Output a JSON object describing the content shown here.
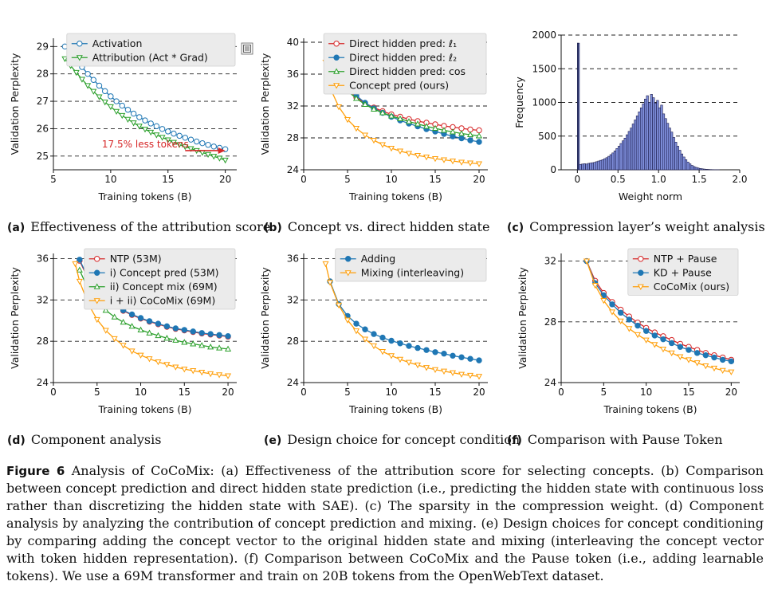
{
  "figure_label": "Figure 6",
  "caption": "Analysis of CoCoMix: (a) Effectiveness of the attribution score for selecting concepts. (b) Comparison between concept prediction and direct hidden state prediction (i.e., predicting the hidden state with continuous loss rather than discretizing the hidden state with SAE). (c) The sparsity in the compression weight. (d) Component analysis by analyzing the contribution of concept prediction and mixing. (e) Design choices for concept conditioning by comparing adding the concept vector to the original hidden state and mixing (interleaving the concept vector with token hidden representation). (f) Comparison between CoCoMix and the Pause token (i.e., adding learnable tokens). We use a 69M transformer and train on 20B tokens from the OpenWebText dataset.",
  "colors": {
    "blue": "#1f77b4",
    "green": "#2ca02c",
    "orange": "#ff9f0a",
    "red": "#d62728",
    "hist_fill": "#7f8fdc",
    "hist_edge": "#1a1a4a",
    "annotation": "#d62728"
  },
  "chart_data": [
    {
      "id": "a",
      "type": "line",
      "sublabel": "(a)",
      "subtitle": "Effectiveness of the attribution score",
      "xlabel": "Training tokens (B)",
      "ylabel": "Validation Perplexity",
      "xlim": [
        5,
        21
      ],
      "ylim": [
        24.5,
        29.3
      ],
      "xticks": [
        5,
        10,
        15,
        20
      ],
      "yticks": [
        25,
        26,
        27,
        28,
        29
      ],
      "hgrid": [
        25,
        26,
        27,
        28,
        29
      ],
      "legend_position": "top-right",
      "annotation": {
        "text": "17.5% less tokens",
        "arrow_from": [
          16.5,
          25.2
        ],
        "arrow_to": [
          20,
          25.2
        ]
      },
      "series": [
        {
          "name": "Activation",
          "color": "blue",
          "marker": "circle",
          "x": [
            6,
            6.5,
            7,
            7.5,
            8,
            8.5,
            9,
            9.5,
            10,
            10.5,
            11,
            11.5,
            12,
            12.5,
            13,
            13.5,
            14,
            14.5,
            15,
            15.5,
            16,
            16.5,
            17,
            17.5,
            18,
            18.5,
            19,
            19.5,
            20
          ],
          "y": [
            29.0,
            28.75,
            28.5,
            28.25,
            28.0,
            27.78,
            27.57,
            27.37,
            27.18,
            27.0,
            26.84,
            26.69,
            26.55,
            26.42,
            26.3,
            26.19,
            26.09,
            25.99,
            25.9,
            25.82,
            25.74,
            25.67,
            25.6,
            25.53,
            25.47,
            25.41,
            25.35,
            25.3,
            25.25
          ]
        },
        {
          "name": "Attribution (Act * Grad)",
          "color": "green",
          "marker": "tri-down",
          "x": [
            6,
            6.5,
            7,
            7.5,
            8,
            8.5,
            9,
            9.5,
            10,
            10.5,
            11,
            11.5,
            12,
            12.5,
            13,
            13.5,
            14,
            14.5,
            15,
            15.5,
            16,
            16.5,
            17,
            17.5,
            18,
            18.5,
            19,
            19.5,
            20
          ],
          "y": [
            28.55,
            28.3,
            28.05,
            27.8,
            27.57,
            27.36,
            27.16,
            26.97,
            26.8,
            26.63,
            26.48,
            26.34,
            26.21,
            26.09,
            25.98,
            25.87,
            25.77,
            25.68,
            25.59,
            25.5,
            25.42,
            25.34,
            25.27,
            25.2,
            25.13,
            25.06,
            24.99,
            24.92,
            24.85
          ]
        }
      ]
    },
    {
      "id": "b",
      "type": "line",
      "sublabel": "(b)",
      "subtitle": "Concept vs. direct hidden state",
      "xlabel": "Training tokens (B)",
      "ylabel": "Validation Perplexity",
      "xlim": [
        0,
        21
      ],
      "ylim": [
        24,
        40.5
      ],
      "xticks": [
        0,
        5,
        10,
        15,
        20
      ],
      "yticks": [
        24,
        28,
        32,
        36,
        40
      ],
      "hgrid": [
        28,
        32,
        36,
        40
      ],
      "legend_position": "top-right",
      "series": [
        {
          "name": "Direct hidden pred: ℓ₁",
          "color": "red",
          "marker": "circle",
          "x": [
            3,
            4,
            5,
            6,
            7,
            8,
            9,
            10,
            11,
            12,
            13,
            14,
            15,
            16,
            17,
            18,
            19,
            20
          ],
          "y": [
            38.6,
            35.7,
            34.1,
            33.1,
            32.35,
            31.8,
            31.35,
            30.95,
            30.65,
            30.35,
            30.1,
            29.9,
            29.7,
            29.5,
            29.35,
            29.2,
            29.05,
            28.95
          ]
        },
        {
          "name": "Direct hidden pred: ℓ₂",
          "color": "blue",
          "marker": "circle-filled",
          "x": [
            3,
            4,
            5,
            6,
            7,
            8,
            9,
            10,
            11,
            12,
            13,
            14,
            15,
            16,
            17,
            18,
            19,
            20
          ],
          "y": [
            39.6,
            36.4,
            34.5,
            33.3,
            32.4,
            31.7,
            31.15,
            30.65,
            30.2,
            29.8,
            29.45,
            29.1,
            28.8,
            28.5,
            28.2,
            27.95,
            27.7,
            27.5
          ]
        },
        {
          "name": "Direct hidden pred: cos",
          "color": "green",
          "marker": "tri-up",
          "x": [
            3,
            4,
            5,
            6,
            7,
            8,
            9,
            10,
            11,
            12,
            13,
            14,
            15,
            16,
            17,
            18,
            19,
            20
          ],
          "y": [
            38.2,
            35.4,
            33.9,
            32.95,
            32.2,
            31.6,
            31.15,
            30.75,
            30.4,
            30.05,
            29.75,
            29.45,
            29.2,
            28.95,
            28.75,
            28.55,
            28.4,
            28.25
          ]
        },
        {
          "name": "Concept pred (ours)",
          "color": "orange",
          "marker": "tri-down",
          "x": [
            2.5,
            3,
            4,
            5,
            6,
            7,
            8,
            9,
            10,
            11,
            12,
            13,
            14,
            15,
            16,
            17,
            18,
            19,
            20
          ],
          "y": [
            37.5,
            34.3,
            31.9,
            30.3,
            29.2,
            28.35,
            27.7,
            27.15,
            26.7,
            26.35,
            26.05,
            25.8,
            25.6,
            25.4,
            25.25,
            25.1,
            24.95,
            24.85,
            24.75
          ]
        }
      ]
    },
    {
      "id": "c",
      "type": "bar",
      "sublabel": "(c)",
      "subtitle": "Compression layer’s weight analysis",
      "xlabel": "Weight norm",
      "ylabel": "Frequency",
      "xlim": [
        -0.2,
        2.0
      ],
      "ylim": [
        0,
        2000
      ],
      "xticks": [
        0,
        0.5,
        1.0,
        1.5,
        2.0
      ],
      "xtick_labels": [
        "0",
        "0.5",
        "1.0",
        "1.5",
        "2.0"
      ],
      "yticks": [
        0,
        500,
        1000,
        1500,
        2000
      ],
      "hgrid": [
        500,
        1000,
        1500,
        2000
      ],
      "bin_start": 0,
      "bin_width": 0.025,
      "values": [
        1880,
        80,
        85,
        90,
        85,
        95,
        100,
        105,
        110,
        120,
        130,
        140,
        150,
        165,
        180,
        200,
        225,
        250,
        280,
        315,
        350,
        390,
        430,
        470,
        520,
        570,
        620,
        680,
        740,
        800,
        860,
        920,
        980,
        1050,
        1100,
        1000,
        1120,
        1070,
        990,
        1030,
        920,
        960,
        830,
        760,
        690,
        620,
        560,
        480,
        410,
        350,
        290,
        235,
        190,
        150,
        115,
        88,
        65,
        48,
        36,
        27,
        20,
        15,
        11,
        8,
        6,
        4,
        3,
        2,
        1,
        1
      ]
    },
    {
      "id": "d",
      "type": "line",
      "sublabel": "(d)",
      "subtitle": "Component analysis",
      "xlabel": "Training tokens (B)",
      "ylabel": "Validation Perplexity",
      "xlim": [
        0,
        21
      ],
      "ylim": [
        24,
        36.5
      ],
      "xticks": [
        0,
        5,
        10,
        15,
        20
      ],
      "yticks": [
        24,
        28,
        32,
        36
      ],
      "hgrid": [
        28,
        32,
        36
      ],
      "legend_position": "top-right",
      "series": [
        {
          "name": "NTP (53M)",
          "color": "red",
          "marker": "circle",
          "x": [
            3,
            4,
            5,
            6,
            7,
            8,
            9,
            10,
            11,
            12,
            13,
            14,
            15,
            16,
            17,
            18,
            19,
            20
          ],
          "y": [
            35.8,
            34.0,
            32.9,
            32.1,
            31.45,
            30.95,
            30.55,
            30.2,
            29.9,
            29.65,
            29.4,
            29.2,
            29.05,
            28.9,
            28.75,
            28.65,
            28.55,
            28.45
          ]
        },
        {
          "name": "i) Concept pred (53M)",
          "color": "blue",
          "marker": "circle-filled",
          "x": [
            3,
            4,
            5,
            6,
            7,
            8,
            9,
            10,
            11,
            12,
            13,
            14,
            15,
            16,
            17,
            18,
            19,
            20
          ],
          "y": [
            35.9,
            34.1,
            32.95,
            32.15,
            31.5,
            31.0,
            30.6,
            30.25,
            29.95,
            29.7,
            29.45,
            29.25,
            29.1,
            28.95,
            28.8,
            28.7,
            28.6,
            28.5
          ]
        },
        {
          "name": "ii) Concept mix (69M)",
          "color": "green",
          "marker": "tri-up",
          "x": [
            3,
            4,
            5,
            6,
            7,
            8,
            9,
            10,
            11,
            12,
            13,
            14,
            15,
            16,
            17,
            18,
            19,
            20
          ],
          "y": [
            34.9,
            33.0,
            31.85,
            31.0,
            30.35,
            29.85,
            29.45,
            29.1,
            28.8,
            28.55,
            28.3,
            28.1,
            27.9,
            27.75,
            27.6,
            27.45,
            27.35,
            27.25
          ]
        },
        {
          "name": "i + ii) CoCoMix (69M)",
          "color": "orange",
          "marker": "tri-down",
          "x": [
            2.5,
            3,
            4,
            5,
            6,
            7,
            8,
            9,
            10,
            11,
            12,
            13,
            14,
            15,
            16,
            17,
            18,
            19,
            20
          ],
          "y": [
            35.5,
            33.8,
            31.6,
            30.1,
            29.05,
            28.25,
            27.6,
            27.05,
            26.65,
            26.3,
            26.0,
            25.75,
            25.5,
            25.3,
            25.15,
            25.0,
            24.85,
            24.75,
            24.65
          ]
        }
      ]
    },
    {
      "id": "e",
      "type": "line",
      "sublabel": "(e)",
      "subtitle": "Design choice for concept condition",
      "xlabel": "Training tokens (B)",
      "ylabel": "Validation Perplexity",
      "xlim": [
        0,
        21
      ],
      "ylim": [
        24,
        36.5
      ],
      "xticks": [
        0,
        5,
        10,
        15,
        20
      ],
      "yticks": [
        24,
        28,
        32,
        36
      ],
      "hgrid": [
        28,
        32,
        36
      ],
      "legend_position": "top-right",
      "series": [
        {
          "name": "Adding",
          "color": "blue",
          "marker": "circle-filled",
          "x": [
            3,
            4,
            5,
            6,
            7,
            8,
            9,
            10,
            11,
            12,
            13,
            14,
            15,
            16,
            17,
            18,
            19,
            20
          ],
          "y": [
            33.8,
            31.6,
            30.45,
            29.7,
            29.15,
            28.7,
            28.35,
            28.05,
            27.8,
            27.55,
            27.35,
            27.15,
            26.95,
            26.8,
            26.6,
            26.45,
            26.3,
            26.15
          ]
        },
        {
          "name": "Mixing (interleaving)",
          "color": "orange",
          "marker": "tri-down",
          "x": [
            2.5,
            3,
            4,
            5,
            6,
            7,
            8,
            9,
            10,
            11,
            12,
            13,
            14,
            15,
            16,
            17,
            18,
            19,
            20
          ],
          "y": [
            35.5,
            33.7,
            31.5,
            30.05,
            29.0,
            28.2,
            27.55,
            27.0,
            26.6,
            26.25,
            25.95,
            25.7,
            25.45,
            25.25,
            25.1,
            24.95,
            24.8,
            24.7,
            24.6
          ]
        }
      ]
    },
    {
      "id": "f",
      "type": "line",
      "sublabel": "(f)",
      "subtitle": "Comparison with Pause Token",
      "xlabel": "Training tokens (B)",
      "ylabel": "Validation Perplexity",
      "xlim": [
        0,
        21
      ],
      "ylim": [
        24,
        32.5
      ],
      "xticks": [
        0,
        5,
        10,
        15,
        20
      ],
      "yticks": [
        24,
        28,
        32
      ],
      "hgrid": [
        28,
        32
      ],
      "legend_position": "top-right",
      "series": [
        {
          "name": "NTP + Pause",
          "color": "red",
          "marker": "circle",
          "x": [
            3,
            4,
            5,
            6,
            7,
            8,
            9,
            10,
            11,
            12,
            13,
            14,
            15,
            16,
            17,
            18,
            19,
            20
          ],
          "y": [
            32.0,
            30.7,
            29.9,
            29.3,
            28.8,
            28.35,
            27.95,
            27.6,
            27.3,
            27.05,
            26.8,
            26.55,
            26.35,
            26.15,
            25.95,
            25.8,
            25.65,
            25.5
          ]
        },
        {
          "name": "KD + Pause",
          "color": "blue",
          "marker": "circle-filled",
          "x": [
            3,
            4,
            5,
            6,
            7,
            8,
            9,
            10,
            11,
            12,
            13,
            14,
            15,
            16,
            17,
            18,
            19,
            20
          ],
          "y": [
            32.0,
            30.55,
            29.75,
            29.15,
            28.6,
            28.15,
            27.75,
            27.4,
            27.1,
            26.85,
            26.6,
            26.35,
            26.15,
            25.95,
            25.8,
            25.65,
            25.5,
            25.4
          ]
        },
        {
          "name": "CoCoMix (ours)",
          "color": "orange",
          "marker": "tri-down",
          "x": [
            3,
            4,
            5,
            6,
            7,
            8,
            9,
            10,
            11,
            12,
            13,
            14,
            15,
            16,
            17,
            18,
            19,
            20
          ],
          "y": [
            32.0,
            30.4,
            29.4,
            28.65,
            28.05,
            27.55,
            27.15,
            26.8,
            26.5,
            26.2,
            25.95,
            25.7,
            25.5,
            25.3,
            25.1,
            24.95,
            24.8,
            24.7
          ]
        }
      ]
    }
  ]
}
